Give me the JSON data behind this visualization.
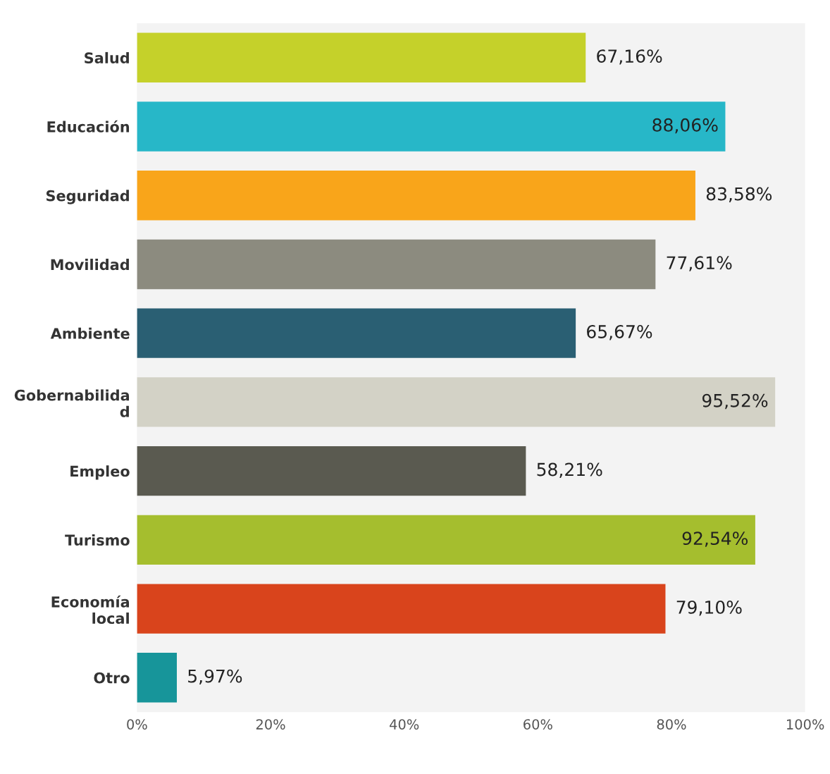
{
  "chart_data": {
    "type": "bar",
    "orientation": "horizontal",
    "categories": [
      "Salud",
      "Educación",
      "Seguridad",
      "Movilidad",
      "Ambiente",
      "Gobernabilida\nd",
      "Empleo",
      "Turismo",
      "Economía\nlocal",
      "Otro"
    ],
    "values": [
      67.16,
      88.06,
      83.58,
      77.61,
      65.67,
      95.52,
      58.21,
      92.54,
      79.1,
      5.97
    ],
    "value_labels": [
      "67,16%",
      "88,06%",
      "83,58%",
      "77,61%",
      "65,67%",
      "95,52%",
      "58,21%",
      "92,54%",
      "79,10%",
      "5,97%"
    ],
    "colors": [
      "#c5d12a",
      "#27b7c8",
      "#f9a51a",
      "#8c8b7f",
      "#2a5f73",
      "#d3d2c6",
      "#5a5a50",
      "#a5be2e",
      "#d9441c",
      "#17959a"
    ],
    "xlim": [
      0,
      100
    ],
    "xticks": [
      {
        "value": 0,
        "label": "0%"
      },
      {
        "value": 20,
        "label": "20%"
      },
      {
        "value": 40,
        "label": "40%"
      },
      {
        "value": 60,
        "label": "60%"
      },
      {
        "value": 80,
        "label": "80%"
      },
      {
        "value": 100,
        "label": "100%"
      }
    ],
    "grid": false
  }
}
